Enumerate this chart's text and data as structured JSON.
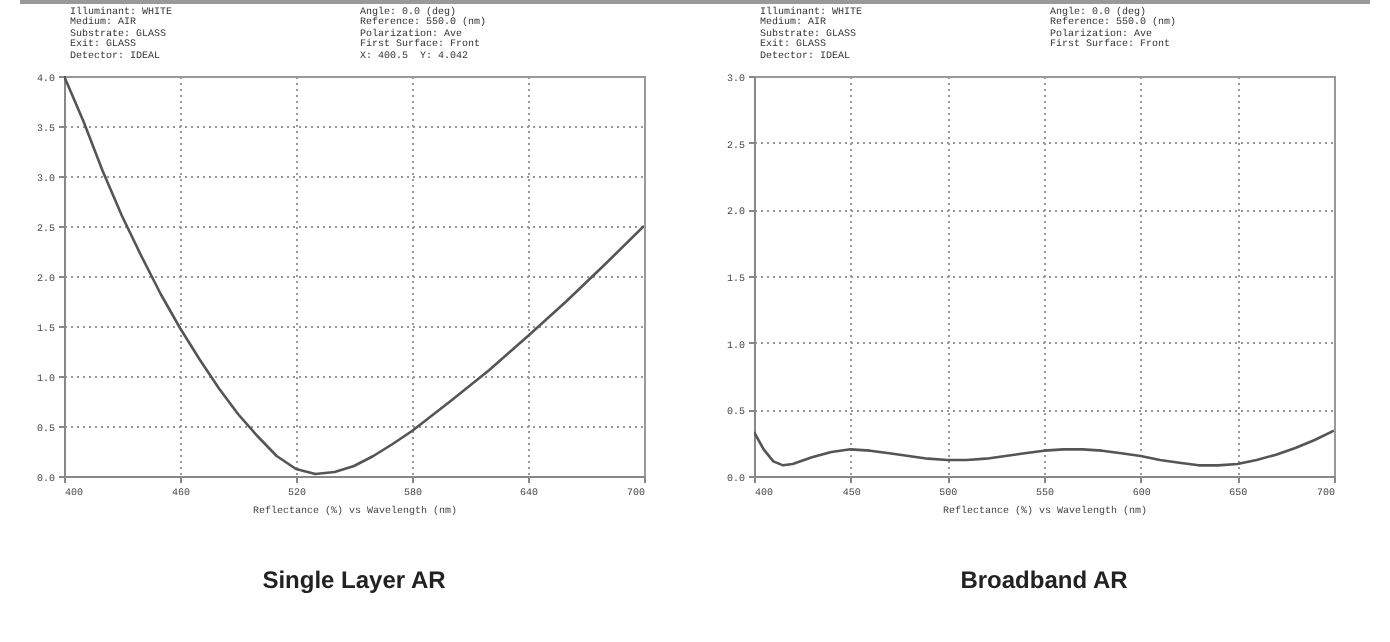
{
  "chart_data": [
    {
      "type": "line",
      "title": "Single Layer AR",
      "xlabel": "Reflectance (%) vs Wavelength (nm)",
      "color": "#555555",
      "grid": true,
      "annotations": [
        "Illuminant: WHITE",
        "Medium: AIR",
        "Substrate: GLASS",
        "Exit: GLASS",
        "Detector: IDEAL",
        "Angle: 0.0 (deg)",
        "Reference: 550.0 (nm)",
        "Polarization: Ave",
        "First Surface: Front",
        "X: 400.5  Y: 4.042"
      ],
      "x": [
        400,
        410,
        420,
        430,
        440,
        450,
        460,
        470,
        480,
        490,
        500,
        510,
        520,
        530,
        540,
        550,
        560,
        570,
        580,
        590,
        600,
        620,
        640,
        660,
        680,
        700
      ],
      "values": [
        4.0,
        3.55,
        3.05,
        2.6,
        2.2,
        1.82,
        1.48,
        1.17,
        0.88,
        0.62,
        0.4,
        0.2,
        0.07,
        0.02,
        0.04,
        0.1,
        0.2,
        0.32,
        0.45,
        0.6,
        0.75,
        1.06,
        1.4,
        1.75,
        2.12,
        2.5
      ],
      "xlim": [
        400,
        700
      ],
      "xticks": [
        400,
        460,
        520,
        580,
        640,
        700
      ],
      "ylim": [
        0,
        4
      ],
      "yticks": [
        {
          "value": 0,
          "label": "0.0"
        },
        0.5,
        {
          "value": 1,
          "label": "1.0"
        },
        1.5,
        {
          "value": 2,
          "label": "2.0"
        },
        2.5,
        {
          "value": 3,
          "label": "3.0"
        },
        3.5,
        {
          "value": 4,
          "label": "4.0"
        }
      ]
    },
    {
      "type": "line",
      "title": "Broadband AR",
      "xlabel": "Reflectance (%) vs Wavelength (nm)",
      "color": "#555555",
      "grid": true,
      "annotations": [
        "Illuminant: WHITE",
        "Medium: AIR",
        "Substrate: GLASS",
        "Exit: GLASS",
        "Detector: IDEAL",
        "Angle: 0.0 (deg)",
        "Reference: 550.0 (nm)",
        "Polarization: Ave",
        "First Surface: Front"
      ],
      "x": [
        400,
        405,
        410,
        415,
        420,
        430,
        440,
        450,
        460,
        470,
        480,
        490,
        500,
        510,
        520,
        530,
        540,
        550,
        560,
        570,
        580,
        590,
        600,
        610,
        620,
        630,
        640,
        650,
        660,
        670,
        680,
        690,
        700
      ],
      "values": [
        0.33,
        0.2,
        0.11,
        0.08,
        0.09,
        0.14,
        0.18,
        0.2,
        0.19,
        0.17,
        0.15,
        0.13,
        0.12,
        0.12,
        0.13,
        0.15,
        0.17,
        0.19,
        0.2,
        0.2,
        0.19,
        0.17,
        0.15,
        0.12,
        0.1,
        0.08,
        0.08,
        0.09,
        0.12,
        0.16,
        0.21,
        0.27,
        0.34
      ],
      "xlim": [
        400,
        700
      ],
      "xticks": [
        400,
        450,
        500,
        550,
        600,
        650,
        700
      ],
      "ylim": [
        0,
        3
      ],
      "yticks": [
        {
          "value": 0,
          "label": "0.0"
        },
        0.5,
        {
          "value": 1,
          "label": "1.0"
        },
        1.5,
        {
          "value": 2,
          "label": "2.0"
        },
        2.5,
        {
          "value": 3,
          "label": "3.0"
        }
      ]
    }
  ]
}
